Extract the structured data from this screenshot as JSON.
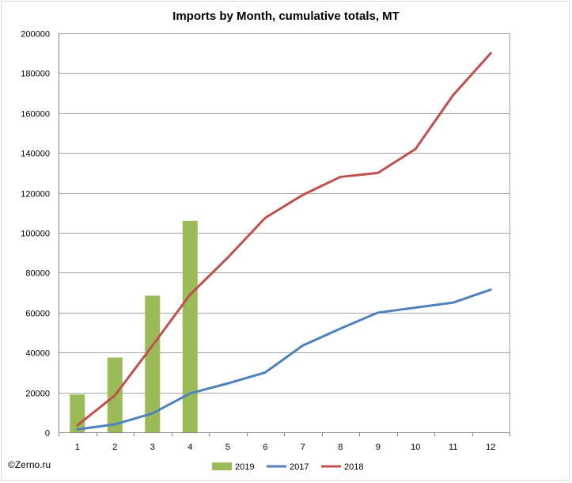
{
  "chart_data": {
    "type": "bar",
    "title": "Imports by Month, cumulative totals, MT",
    "xlabel": "",
    "ylabel": "",
    "categories": [
      "1",
      "2",
      "3",
      "4",
      "5",
      "6",
      "7",
      "8",
      "9",
      "10",
      "11",
      "12"
    ],
    "ylim": [
      0,
      200000
    ],
    "yticks": [
      0,
      20000,
      40000,
      60000,
      80000,
      100000,
      120000,
      140000,
      160000,
      180000,
      200000
    ],
    "grid": true,
    "legend_position": "bottom",
    "series": [
      {
        "name": "2019",
        "kind": "bar",
        "color": "#9bbb59",
        "values": [
          19000,
          37500,
          68500,
          106000,
          null,
          null,
          null,
          null,
          null,
          null,
          null,
          null
        ]
      },
      {
        "name": "2017",
        "kind": "line",
        "color": "#4f81bd",
        "values": [
          1500,
          4000,
          9500,
          19500,
          24500,
          30000,
          43500,
          52000,
          60000,
          62500,
          65000,
          71500
        ]
      },
      {
        "name": "2018",
        "kind": "line",
        "color": "#c0504d",
        "values": [
          3500,
          18500,
          43500,
          69000,
          87500,
          107500,
          119000,
          128000,
          130000,
          142000,
          169000,
          190000
        ]
      }
    ]
  },
  "footer": {
    "copyright": "©Zerno.ru"
  }
}
